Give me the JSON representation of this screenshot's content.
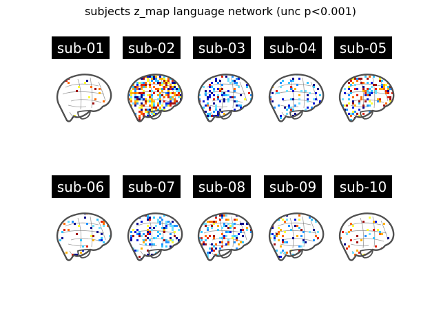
{
  "title": "subjects z_map language network (unc p<0.001)",
  "subjects": [
    {
      "label": "sub-01",
      "pos": 0.06,
      "neg": 0.01
    },
    {
      "label": "sub-02",
      "pos": 0.35,
      "neg": 0.22
    },
    {
      "label": "sub-03",
      "pos": 0.03,
      "neg": 0.28
    },
    {
      "label": "sub-04",
      "pos": 0.02,
      "neg": 0.14
    },
    {
      "label": "sub-05",
      "pos": 0.18,
      "neg": 0.12
    },
    {
      "label": "sub-06",
      "pos": 0.04,
      "neg": 0.08
    },
    {
      "label": "sub-07",
      "pos": 0.05,
      "neg": 0.22
    },
    {
      "label": "sub-08",
      "pos": 0.12,
      "neg": 0.18
    },
    {
      "label": "sub-09",
      "pos": 0.08,
      "neg": 0.1
    },
    {
      "label": "sub-10",
      "pos": 0.06,
      "neg": 0.02
    }
  ],
  "colors": {
    "pos": [
      "#ffff33",
      "#ffb000",
      "#ff6a00",
      "#e0200c",
      "#a01010"
    ],
    "neg": [
      "#00008b",
      "#0018d8",
      "#1e90ff",
      "#33c4ff",
      "#6fe0ff"
    ],
    "outline": "#505050",
    "sulci": "#707070"
  }
}
